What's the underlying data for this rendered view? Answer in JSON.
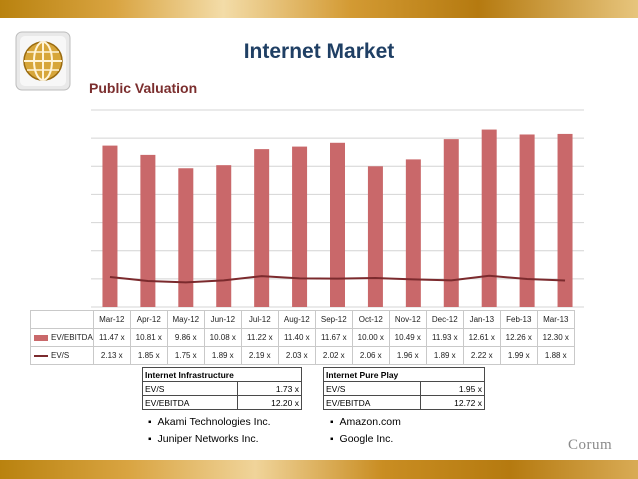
{
  "header": {
    "title": "Internet Market",
    "subtitle": "Public Valuation"
  },
  "chart_data": {
    "type": "bar",
    "categories": [
      "Mar-12",
      "Apr-12",
      "May-12",
      "Jun-12",
      "Jul-12",
      "Aug-12",
      "Sep-12",
      "Oct-12",
      "Nov-12",
      "Dec-12",
      "Jan-13",
      "Feb-13",
      "Mar-13"
    ],
    "series": [
      {
        "name": "EV/EBITDA",
        "type": "bar",
        "color": "#c9686a",
        "values": [
          11.47,
          10.81,
          9.86,
          10.08,
          11.22,
          11.4,
          11.67,
          10.0,
          10.49,
          11.93,
          12.61,
          12.26,
          12.3
        ],
        "labels": [
          "11.47 x",
          "10.81 x",
          "9.86 x",
          "10.08 x",
          "11.22 x",
          "11.40 x",
          "11.67 x",
          "10.00 x",
          "10.49 x",
          "11.93 x",
          "12.61 x",
          "12.26 x",
          "12.30 x"
        ]
      },
      {
        "name": "EV/S",
        "type": "line",
        "color": "#7b2a2d",
        "values": [
          2.13,
          1.85,
          1.75,
          1.89,
          2.19,
          2.03,
          2.02,
          2.06,
          1.96,
          1.89,
          2.22,
          1.99,
          1.88
        ],
        "labels": [
          "2.13 x",
          "1.85 x",
          "1.75 x",
          "1.89 x",
          "2.19 x",
          "2.03 x",
          "2.02 x",
          "2.06 x",
          "1.96 x",
          "1.89 x",
          "2.22 x",
          "1.99 x",
          "1.88 x"
        ]
      }
    ],
    "ylim": [
      0,
      14
    ],
    "grid": true,
    "legend": "data table below chart"
  },
  "infrastructure": {
    "title": "Internet Infrastructure",
    "rows": [
      {
        "label": "EV/S",
        "value": "1.73 x"
      },
      {
        "label": "EV/EBITDA",
        "value": "12.20 x"
      }
    ],
    "companies": [
      "Akami Technologies Inc.",
      "Juniper Networks Inc."
    ]
  },
  "pure_play": {
    "title": "Internet Pure Play",
    "rows": [
      {
        "label": "EV/S",
        "value": "1.95 x"
      },
      {
        "label": "EV/EBITDA",
        "value": "12.72 x"
      }
    ],
    "companies": [
      "Amazon.com",
      "Google Inc."
    ]
  },
  "brand": {
    "name": "Corum"
  },
  "colors": {
    "title": "#1f3f64",
    "subtitle": "#7b2e2e",
    "bar": "#c9686a",
    "line": "#7b2a2d",
    "gold": "#c8911e"
  }
}
